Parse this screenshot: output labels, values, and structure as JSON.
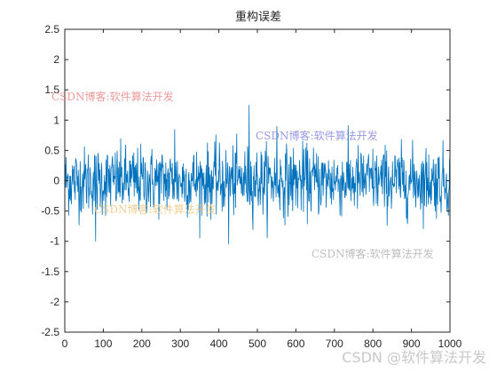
{
  "chart_data": {
    "type": "line",
    "title": "重构误差",
    "xlabel": "",
    "ylabel": "",
    "xlim": [
      0,
      1000
    ],
    "ylim": [
      -2.5,
      2.5
    ],
    "xticks": [
      0,
      100,
      200,
      300,
      400,
      500,
      600,
      700,
      800,
      900,
      1000
    ],
    "yticks": [
      -2.5,
      -2,
      -1.5,
      -1,
      -0.5,
      0,
      0.5,
      1,
      1.5,
      2,
      2.5
    ],
    "grid": false,
    "legend": "none",
    "series": [
      {
        "color": "#0072BD",
        "n_points": 1000,
        "y_range": [
          -1.05,
          1.25
        ],
        "description_points": [
          [
            0,
            0.1
          ],
          [
            80,
            -1.0
          ],
          [
            285,
            0.85
          ],
          [
            425,
            -1.05
          ],
          [
            478,
            1.25
          ],
          [
            550,
            0.9
          ],
          [
            1000,
            -1.0
          ]
        ]
      }
    ]
  },
  "watermarks": [
    {
      "text": "CSDN博客:软件算法开发",
      "color": "#e87878"
    },
    {
      "text": "CSDN博客:软件算法开发",
      "color": "#7777dd"
    },
    {
      "text": "CSDN博客:软件算法开发",
      "color": "#e8c070"
    },
    {
      "text": "CSDN博客:软件算法开发",
      "color": "#a8a8a8"
    }
  ],
  "corner_watermark": "CSDN @软件算法开发"
}
